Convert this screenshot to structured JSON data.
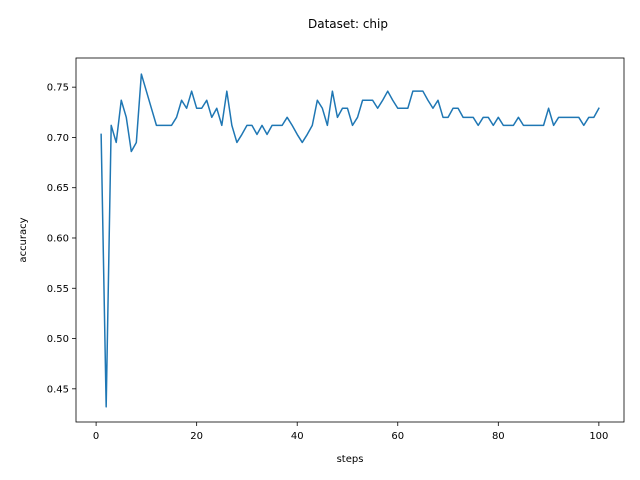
{
  "chart_data": {
    "type": "line",
    "title": "Dataset: chip",
    "xlabel": "steps",
    "ylabel": "accuracy",
    "xlim": [
      -4,
      105
    ],
    "ylim": [
      0.417,
      0.779
    ],
    "xticks": [
      0,
      20,
      40,
      60,
      80,
      100
    ],
    "xtick_labels": [
      "0",
      "20",
      "40",
      "60",
      "80",
      "100"
    ],
    "yticks": [
      0.45,
      0.5,
      0.55,
      0.6,
      0.65,
      0.7,
      0.75
    ],
    "ytick_labels": [
      "0.45",
      "0.50",
      "0.55",
      "0.60",
      "0.65",
      "0.70",
      "0.75"
    ],
    "grid": false,
    "series": [
      {
        "color": "#1f77b4",
        "x": [
          1,
          2,
          3,
          4,
          5,
          6,
          7,
          8,
          9,
          10,
          11,
          12,
          13,
          14,
          15,
          16,
          17,
          18,
          19,
          20,
          21,
          22,
          23,
          24,
          25,
          26,
          27,
          28,
          29,
          30,
          31,
          32,
          33,
          34,
          35,
          36,
          37,
          38,
          39,
          40,
          41,
          42,
          43,
          44,
          45,
          46,
          47,
          48,
          49,
          50,
          51,
          52,
          53,
          54,
          55,
          56,
          57,
          58,
          59,
          60,
          61,
          62,
          63,
          64,
          65,
          66,
          67,
          68,
          69,
          70,
          71,
          72,
          73,
          74,
          75,
          76,
          77,
          78,
          79,
          80,
          81,
          82,
          83,
          84,
          85,
          86,
          87,
          88,
          89,
          90,
          91,
          92,
          93,
          94,
          95,
          96,
          97,
          98,
          99,
          100
        ],
        "values": [
          0.703,
          0.432,
          0.712,
          0.695,
          0.737,
          0.72,
          0.686,
          0.695,
          0.763,
          0.746,
          0.729,
          0.712,
          0.712,
          0.712,
          0.712,
          0.72,
          0.737,
          0.729,
          0.746,
          0.729,
          0.729,
          0.737,
          0.72,
          0.729,
          0.712,
          0.746,
          0.712,
          0.695,
          0.703,
          0.712,
          0.712,
          0.703,
          0.712,
          0.703,
          0.712,
          0.712,
          0.712,
          0.72,
          0.712,
          0.703,
          0.695,
          0.703,
          0.712,
          0.737,
          0.729,
          0.712,
          0.746,
          0.72,
          0.729,
          0.729,
          0.712,
          0.72,
          0.737,
          0.737,
          0.737,
          0.729,
          0.737,
          0.746,
          0.737,
          0.729,
          0.729,
          0.729,
          0.746,
          0.746,
          0.746,
          0.737,
          0.729,
          0.737,
          0.72,
          0.72,
          0.729,
          0.729,
          0.72,
          0.72,
          0.72,
          0.712,
          0.72,
          0.72,
          0.712,
          0.72,
          0.712,
          0.712,
          0.712,
          0.72,
          0.712,
          0.712,
          0.712,
          0.712,
          0.712,
          0.729,
          0.712,
          0.72,
          0.72,
          0.72,
          0.72,
          0.72,
          0.712,
          0.72,
          0.72,
          0.729
        ]
      }
    ]
  }
}
